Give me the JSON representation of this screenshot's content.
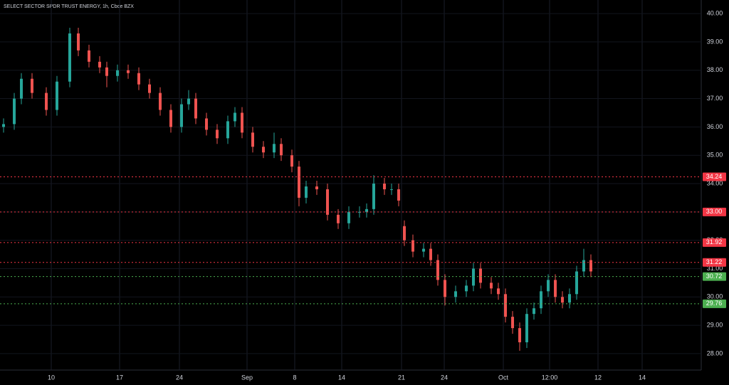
{
  "chart_data": {
    "type": "candlestick",
    "title": "SELECT SECTOR SPDR TRUST ENERGY, 1h, Cboe BZX",
    "x": [
      5,
      20,
      30,
      45,
      65,
      80,
      98,
      110,
      125,
      140,
      150,
      165,
      180,
      195,
      210,
      225,
      240,
      255,
      265,
      275,
      290,
      305,
      320,
      330,
      340,
      355,
      370,
      385,
      395,
      410,
      420,
      430,
      445,
      460,
      475,
      490,
      505,
      515,
      525,
      540,
      550,
      560,
      568,
      580,
      595,
      605,
      615,
      625,
      640,
      655,
      665,
      675,
      690,
      700,
      710,
      720,
      730,
      740,
      750,
      760,
      770,
      780,
      790,
      800,
      810,
      820,
      830
    ],
    "open": [
      36.0,
      36.1,
      37.0,
      37.7,
      37.2,
      36.6,
      37.6,
      39.3,
      38.7,
      38.3,
      38.1,
      37.8,
      38.0,
      37.9,
      37.5,
      37.2,
      36.6,
      36.0,
      36.8,
      37.0,
      36.3,
      35.9,
      35.6,
      36.2,
      36.5,
      35.8,
      35.3,
      35.1,
      35.4,
      35.0,
      34.6,
      33.5,
      33.9,
      33.8,
      32.9,
      32.6,
      33.0,
      33.0,
      33.1,
      34.0,
      33.8,
      33.8,
      32.5,
      32.0,
      31.6,
      31.7,
      31.3,
      30.6,
      30.0,
      30.2,
      30.4,
      31.0,
      30.5,
      30.3,
      30.1,
      29.3,
      28.9,
      28.4,
      29.4,
      29.6,
      30.2,
      30.6,
      30.0,
      29.8,
      30.1,
      30.9,
      31.3
    ],
    "high": [
      36.3,
      37.2,
      37.9,
      37.9,
      37.4,
      37.8,
      39.5,
      39.5,
      38.9,
      38.5,
      38.3,
      38.2,
      38.2,
      38.1,
      37.7,
      37.4,
      36.8,
      37.0,
      37.3,
      37.2,
      36.5,
      36.1,
      36.4,
      36.7,
      36.7,
      36.0,
      35.5,
      35.8,
      35.6,
      35.2,
      34.8,
      34.1,
      34.1,
      34.0,
      33.1,
      33.2,
      33.2,
      33.3,
      34.3,
      34.2,
      34.0,
      34.0,
      32.7,
      32.2,
      31.9,
      31.9,
      31.5,
      30.8,
      30.4,
      30.6,
      31.2,
      31.2,
      30.7,
      30.5,
      30.3,
      29.5,
      29.1,
      29.6,
      29.8,
      30.4,
      30.8,
      30.8,
      30.2,
      30.3,
      31.1,
      31.7,
      31.5
    ],
    "low": [
      35.8,
      35.9,
      36.8,
      37.0,
      36.4,
      36.4,
      37.4,
      38.5,
      38.1,
      37.9,
      37.4,
      37.6,
      37.7,
      37.3,
      37.0,
      36.4,
      35.8,
      35.8,
      36.6,
      36.1,
      35.7,
      35.4,
      35.4,
      36.0,
      35.6,
      35.1,
      34.9,
      34.9,
      34.8,
      34.4,
      33.2,
      33.3,
      33.6,
      32.7,
      32.4,
      32.4,
      32.8,
      32.8,
      32.9,
      33.6,
      33.6,
      33.2,
      31.8,
      31.4,
      31.4,
      31.1,
      30.4,
      29.7,
      29.8,
      30.0,
      30.2,
      30.3,
      30.1,
      29.9,
      29.1,
      28.7,
      28.1,
      28.2,
      29.2,
      29.4,
      30.0,
      29.8,
      29.6,
      29.6,
      29.9,
      30.7,
      30.7
    ],
    "close": [
      36.1,
      37.0,
      37.7,
      37.2,
      36.6,
      37.6,
      39.3,
      38.7,
      38.3,
      38.1,
      37.8,
      38.0,
      37.9,
      37.5,
      37.2,
      36.6,
      36.0,
      36.8,
      37.0,
      36.3,
      35.9,
      35.6,
      36.2,
      36.5,
      35.8,
      35.3,
      35.1,
      35.4,
      35.0,
      34.6,
      33.5,
      33.9,
      33.8,
      32.9,
      32.6,
      33.0,
      33.0,
      33.1,
      34.0,
      33.8,
      33.8,
      33.4,
      32.0,
      31.6,
      31.7,
      31.3,
      30.6,
      30.0,
      30.2,
      30.4,
      31.0,
      30.5,
      30.3,
      30.1,
      29.3,
      28.9,
      28.4,
      29.4,
      29.6,
      30.2,
      30.6,
      30.0,
      29.8,
      30.1,
      30.9,
      31.3,
      30.9
    ],
    "up_color": "#26a69a",
    "down_color": "#ef5350",
    "xlim": [
      0,
      985
    ],
    "ylim": [
      27.42,
      40.48
    ],
    "xticks": [
      {
        "value": 72,
        "label": "10"
      },
      {
        "value": 168,
        "label": "17"
      },
      {
        "value": 252,
        "label": "24"
      },
      {
        "value": 347,
        "label": "Sep"
      },
      {
        "value": 414,
        "label": "8"
      },
      {
        "value": 480,
        "label": "14"
      },
      {
        "value": 564,
        "label": "21"
      },
      {
        "value": 624,
        "label": "24"
      },
      {
        "value": 707,
        "label": "Oct"
      },
      {
        "value": 772,
        "label": "12:00"
      },
      {
        "value": 840,
        "label": "12"
      },
      {
        "value": 902,
        "label": "14"
      }
    ],
    "yticks": [
      {
        "value": 28,
        "label": "28.00"
      },
      {
        "value": 29,
        "label": "29.00"
      },
      {
        "value": 30,
        "label": "30.00"
      },
      {
        "value": 31,
        "label": "31.00"
      },
      {
        "value": 32,
        "label": "32.00"
      },
      {
        "value": 33,
        "label": "33.00"
      },
      {
        "value": 34,
        "label": "34.00"
      },
      {
        "value": 35,
        "label": "35.00"
      },
      {
        "value": 36,
        "label": "36.00"
      },
      {
        "value": 37,
        "label": "37.00"
      },
      {
        "value": 38,
        "label": "38.00"
      },
      {
        "value": 39,
        "label": "39.00"
      },
      {
        "value": 40,
        "label": "40.00"
      }
    ],
    "levels": [
      {
        "value": 34.24,
        "label": "34.24",
        "color": "#f23645"
      },
      {
        "value": 33,
        "label": "33.00",
        "color": "#f23645"
      },
      {
        "value": 31.92,
        "label": "31.92",
        "color": "#f23645"
      },
      {
        "value": 31.22,
        "label": "31.22",
        "color": "#f23645"
      },
      {
        "value": 30.72,
        "label": "30.72",
        "color": "#4caf50"
      },
      {
        "value": 29.76,
        "label": "29.76",
        "color": "#4caf50"
      }
    ],
    "grid": true
  }
}
